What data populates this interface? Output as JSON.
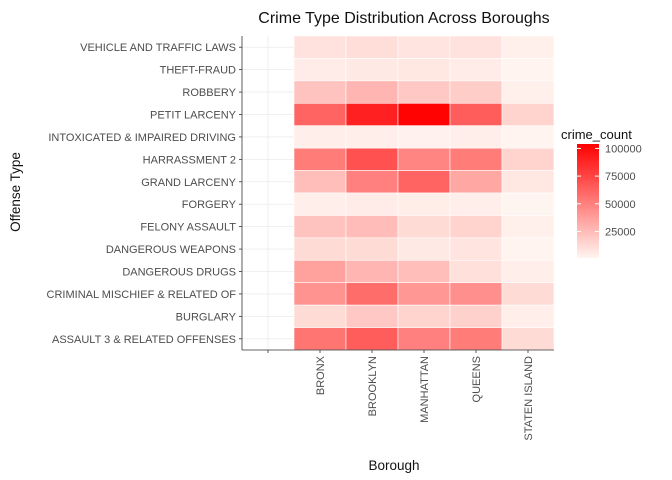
{
  "chart_data": {
    "type": "heatmap",
    "title": "Crime Type Distribution Across Boroughs",
    "xlabel": "Borough",
    "ylabel": "Offense Type",
    "x_categories": [
      "",
      "BRONX",
      "BROOKLYN",
      "MANHATTAN",
      "QUEENS",
      "STATEN ISLAND"
    ],
    "y_categories": [
      "VEHICLE AND TRAFFIC LAWS",
      "THEFT-FRAUD",
      "ROBBERY",
      "PETIT LARCENY",
      "INTOXICATED & IMPAIRED DRIVING",
      "HARRASSMENT 2",
      "GRAND LARCENY",
      "FORGERY",
      "FELONY ASSAULT",
      "DANGEROUS WEAPONS",
      "DANGEROUS DRUGS",
      "CRIMINAL MISCHIEF & RELATED OF",
      "BURGLARY",
      "ASSAULT 3 & RELATED OFFENSES"
    ],
    "values": [
      [
        null,
        9000,
        11000,
        8000,
        9000,
        3000
      ],
      [
        null,
        5000,
        6000,
        7000,
        5000,
        1500
      ],
      [
        null,
        22000,
        28000,
        20000,
        18000,
        3000
      ],
      [
        null,
        62000,
        90000,
        103000,
        65000,
        15000
      ],
      [
        null,
        4000,
        4000,
        2500,
        4000,
        1500
      ],
      [
        null,
        52000,
        70000,
        48000,
        52000,
        15000
      ],
      [
        null,
        24000,
        50000,
        62000,
        34000,
        7000
      ],
      [
        null,
        4000,
        5000,
        4500,
        4000,
        1000
      ],
      [
        null,
        22000,
        25000,
        12000,
        15000,
        3000
      ],
      [
        null,
        12000,
        12000,
        6000,
        8000,
        1500
      ],
      [
        null,
        36000,
        28000,
        24000,
        10000,
        4000
      ],
      [
        null,
        42000,
        58000,
        40000,
        44000,
        12000
      ],
      [
        null,
        12000,
        20000,
        15000,
        16000,
        4000
      ],
      [
        null,
        55000,
        65000,
        50000,
        52000,
        12000
      ]
    ],
    "legend": {
      "title": "crime_count",
      "ticks": [
        25000,
        50000,
        75000,
        100000
      ],
      "tick_labels": [
        "25000",
        "50000",
        "75000",
        "100000"
      ],
      "range": [
        1000,
        104000
      ],
      "low_color": "#fff5f0",
      "high_color": "#ff0000",
      "placement": "right"
    },
    "grid": true,
    "background": "#ffffff"
  }
}
